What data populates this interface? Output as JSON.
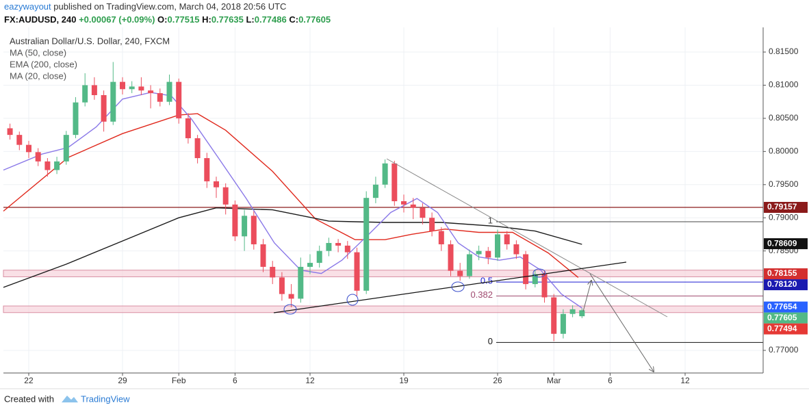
{
  "header": {
    "user": "eazywayout",
    "published": "published on TradingView.com, March 04, 2018 20:56 UTC"
  },
  "symbol": {
    "name": "FX:AUDUSD, 240",
    "change": "+0.00067 (+0.09%)",
    "ohlc": [
      {
        "label": "O:",
        "value": "0.77515"
      },
      {
        "label": "H:",
        "value": "0.77635"
      },
      {
        "label": "L:",
        "value": "0.77486"
      },
      {
        "label": "C:",
        "value": "0.77605"
      }
    ]
  },
  "footer": {
    "created": "Created with",
    "brand": "TradingView"
  },
  "chart_data": {
    "type": "candlestick",
    "title": "Australian Dollar/U.S. Dollar, 240, FXCM",
    "up_color": "#53b987",
    "down_color": "#eb4d5c",
    "xlim": [
      -1.35,
      39.16
    ],
    "ylim": [
      0.76659,
      0.81872
    ],
    "grid": true,
    "xticks": [
      {
        "value": 0,
        "label": "22"
      },
      {
        "value": 5,
        "label": "29"
      },
      {
        "value": 8,
        "label": "Feb"
      },
      {
        "value": 11,
        "label": "6"
      },
      {
        "value": 15,
        "label": "12"
      },
      {
        "value": 20,
        "label": "19"
      },
      {
        "value": 25,
        "label": "26"
      },
      {
        "value": 28,
        "label": "Mar"
      },
      {
        "value": 31,
        "label": "6"
      },
      {
        "value": 35,
        "label": "12"
      }
    ],
    "yticks": [
      {
        "value": 0.815,
        "label": "0.81500"
      },
      {
        "value": 0.81,
        "label": "0.81000"
      },
      {
        "value": 0.805,
        "label": "0.80500"
      },
      {
        "value": 0.8,
        "label": "0.80000"
      },
      {
        "value": 0.795,
        "label": "0.79500"
      },
      {
        "value": 0.79,
        "label": "0.79000"
      },
      {
        "value": 0.785,
        "label": "0.78500"
      },
      {
        "value": 0.77,
        "label": "0.77000"
      }
    ],
    "x": [
      -1,
      -0.5,
      0,
      0.5,
      1,
      1.5,
      2,
      2.5,
      3,
      3.5,
      4,
      4.5,
      5,
      5.5,
      6,
      6.5,
      7,
      7.5,
      8,
      8.5,
      9,
      9.5,
      10,
      10.5,
      11,
      11.5,
      12,
      12.5,
      13,
      13.5,
      14,
      14.5,
      15,
      15.5,
      16,
      16.5,
      17,
      17.5,
      18,
      18.5,
      19,
      19.5,
      20,
      20.5,
      21,
      21.5,
      22,
      22.5,
      23,
      23.5,
      24,
      24.5,
      25,
      25.5,
      26,
      26.5,
      27,
      27.5,
      28,
      28.5,
      29,
      29.5
    ],
    "ohlc": [
      [
        0.8035,
        0.8042,
        0.8018,
        0.8025
      ],
      [
        0.8025,
        0.803,
        0.8002,
        0.801
      ],
      [
        0.801,
        0.8016,
        0.799,
        0.7999
      ],
      [
        0.7999,
        0.8005,
        0.7978,
        0.7985
      ],
      [
        0.7985,
        0.799,
        0.7962,
        0.7972
      ],
      [
        0.7972,
        0.7992,
        0.7966,
        0.7985
      ],
      [
        0.7985,
        0.8031,
        0.798,
        0.8025
      ],
      [
        0.8025,
        0.8082,
        0.802,
        0.8074
      ],
      [
        0.8074,
        0.8118,
        0.8068,
        0.81
      ],
      [
        0.81,
        0.8112,
        0.8078,
        0.8085
      ],
      [
        0.8085,
        0.8092,
        0.803,
        0.8045
      ],
      [
        0.8045,
        0.8135,
        0.804,
        0.8105
      ],
      [
        0.8105,
        0.8112,
        0.8086,
        0.8094
      ],
      [
        0.8094,
        0.8106,
        0.8088,
        0.8098
      ],
      [
        0.8098,
        0.8112,
        0.8085,
        0.8092
      ],
      [
        0.8092,
        0.81,
        0.8065,
        0.8088
      ],
      [
        0.8088,
        0.8095,
        0.8068,
        0.8075
      ],
      [
        0.8075,
        0.8116,
        0.807,
        0.8105
      ],
      [
        0.8105,
        0.811,
        0.8042,
        0.805
      ],
      [
        0.805,
        0.8058,
        0.8012,
        0.802
      ],
      [
        0.802,
        0.8025,
        0.7982,
        0.799
      ],
      [
        0.799,
        0.7998,
        0.7945,
        0.7955
      ],
      [
        0.7955,
        0.7962,
        0.793,
        0.7946
      ],
      [
        0.7946,
        0.7952,
        0.7905,
        0.792
      ],
      [
        0.792,
        0.7926,
        0.7865,
        0.7872
      ],
      [
        0.7872,
        0.7912,
        0.785,
        0.7903
      ],
      [
        0.7903,
        0.791,
        0.7852,
        0.786
      ],
      [
        0.786,
        0.7868,
        0.7818,
        0.7826
      ],
      [
        0.7826,
        0.7835,
        0.78,
        0.781
      ],
      [
        0.781,
        0.7818,
        0.7775,
        0.7785
      ],
      [
        0.7785,
        0.78,
        0.7765,
        0.7778
      ],
      [
        0.7778,
        0.784,
        0.7772,
        0.7826
      ],
      [
        0.7826,
        0.7845,
        0.7815,
        0.7832
      ],
      [
        0.7832,
        0.7858,
        0.7825,
        0.785
      ],
      [
        0.785,
        0.787,
        0.7842,
        0.7862
      ],
      [
        0.7862,
        0.7868,
        0.7848,
        0.7858
      ],
      [
        0.7858,
        0.7865,
        0.7838,
        0.7848
      ],
      [
        0.7848,
        0.7855,
        0.7782,
        0.779
      ],
      [
        0.779,
        0.794,
        0.7785,
        0.793
      ],
      [
        0.793,
        0.7962,
        0.7922,
        0.795
      ],
      [
        0.795,
        0.7988,
        0.7945,
        0.7982
      ],
      [
        0.7982,
        0.7986,
        0.7918,
        0.7925
      ],
      [
        0.7925,
        0.7935,
        0.7908,
        0.792
      ],
      [
        0.792,
        0.793,
        0.7898,
        0.7915
      ],
      [
        0.7915,
        0.7922,
        0.789,
        0.79
      ],
      [
        0.79,
        0.7908,
        0.7872,
        0.788
      ],
      [
        0.788,
        0.7886,
        0.785,
        0.786
      ],
      [
        0.786,
        0.7866,
        0.7812,
        0.782
      ],
      [
        0.782,
        0.7832,
        0.7805,
        0.7812
      ],
      [
        0.7812,
        0.7852,
        0.7808,
        0.7845
      ],
      [
        0.7845,
        0.7858,
        0.7836,
        0.785
      ],
      [
        0.785,
        0.7856,
        0.783,
        0.784
      ],
      [
        0.784,
        0.7882,
        0.7835,
        0.7875
      ],
      [
        0.7875,
        0.788,
        0.7852,
        0.786
      ],
      [
        0.786,
        0.7866,
        0.7838,
        0.7845
      ],
      [
        0.7845,
        0.785,
        0.7792,
        0.78
      ],
      [
        0.78,
        0.7822,
        0.7795,
        0.7815
      ],
      [
        0.7815,
        0.782,
        0.7772,
        0.778
      ],
      [
        0.778,
        0.7785,
        0.7714,
        0.7725
      ],
      [
        0.7725,
        0.7762,
        0.7718,
        0.7755
      ],
      [
        0.7755,
        0.7768,
        0.775,
        0.7762
      ],
      [
        0.77515,
        0.77635,
        0.77486,
        0.77605
      ]
    ],
    "series": [
      {
        "name": "MA (50, close)",
        "color": "#e0281c",
        "x": [
          -1.35,
          2.1,
          5,
          8,
          9,
          10.5,
          13,
          15.3,
          17.4,
          19,
          20.4,
          22.2,
          24,
          25.8,
          27.7,
          29.3
        ],
        "values": [
          0.791,
          0.7991,
          0.8027,
          0.8055,
          0.8057,
          0.8032,
          0.797,
          0.7898,
          0.7867,
          0.7867,
          0.7875,
          0.7883,
          0.7878,
          0.7878,
          0.7847,
          0.781
        ]
      },
      {
        "name": "EMA (200, close)",
        "color": "#1a1a1a",
        "x": [
          -1.35,
          2,
          5,
          8,
          10,
          13,
          16,
          19,
          22,
          25,
          27,
          29.5
        ],
        "values": [
          0.7795,
          0.783,
          0.7865,
          0.79,
          0.7915,
          0.7912,
          0.7895,
          0.7893,
          0.7893,
          0.7887,
          0.788,
          0.786
        ]
      },
      {
        "name": "MA (20, close)",
        "color": "#8a78e8",
        "x": [
          -1.35,
          0.7,
          2.1,
          3.6,
          5,
          6.5,
          7.6,
          8.7,
          10.1,
          11.6,
          13.1,
          14.5,
          15.6,
          16.7,
          18.2,
          19.3,
          20.7,
          21.8,
          22.9,
          24,
          25.1,
          26.2,
          27.3,
          28.4,
          29.5
        ],
        "values": [
          0.7972,
          0.7996,
          0.8006,
          0.8037,
          0.8079,
          0.8089,
          0.8084,
          0.8048,
          0.7991,
          0.7929,
          0.7862,
          0.7821,
          0.7816,
          0.7836,
          0.7877,
          0.7908,
          0.7929,
          0.7908,
          0.7862,
          0.7841,
          0.7836,
          0.7841,
          0.7821,
          0.7785,
          0.7764
        ]
      }
    ],
    "hline": {
      "value": 0.79157,
      "color": "#8b1a1a"
    },
    "zones": [
      [
        0.7821,
        0.7811
      ],
      [
        0.7767,
        0.7757
      ]
    ],
    "fib": {
      "labels": [
        "1",
        "0.5",
        "0.382",
        "0"
      ],
      "prices": [
        0.7894,
        0.7803,
        0.7782,
        0.7712
      ],
      "colors": [
        "#444444",
        "#1a1ad0",
        "#a04a70",
        "#111111"
      ]
    },
    "price_tags": [
      {
        "value": 0.79157,
        "label": "0.79157",
        "color": "#8b1a1a"
      },
      {
        "value": 0.78609,
        "label": "0.78609",
        "color": "#111111"
      },
      {
        "value": 0.78155,
        "label": "0.78155",
        "color": "#d32f2f"
      },
      {
        "value": 0.7812,
        "label": "0.78120",
        "color": "#1a1ab0"
      },
      {
        "value": 0.77654,
        "label": "0.77654",
        "color": "#2962ff"
      },
      {
        "value": 0.77605,
        "label": "0.77605",
        "color": "#53b987"
      },
      {
        "value": 0.77494,
        "label": "0.77494",
        "color": "#e53935"
      }
    ]
  }
}
